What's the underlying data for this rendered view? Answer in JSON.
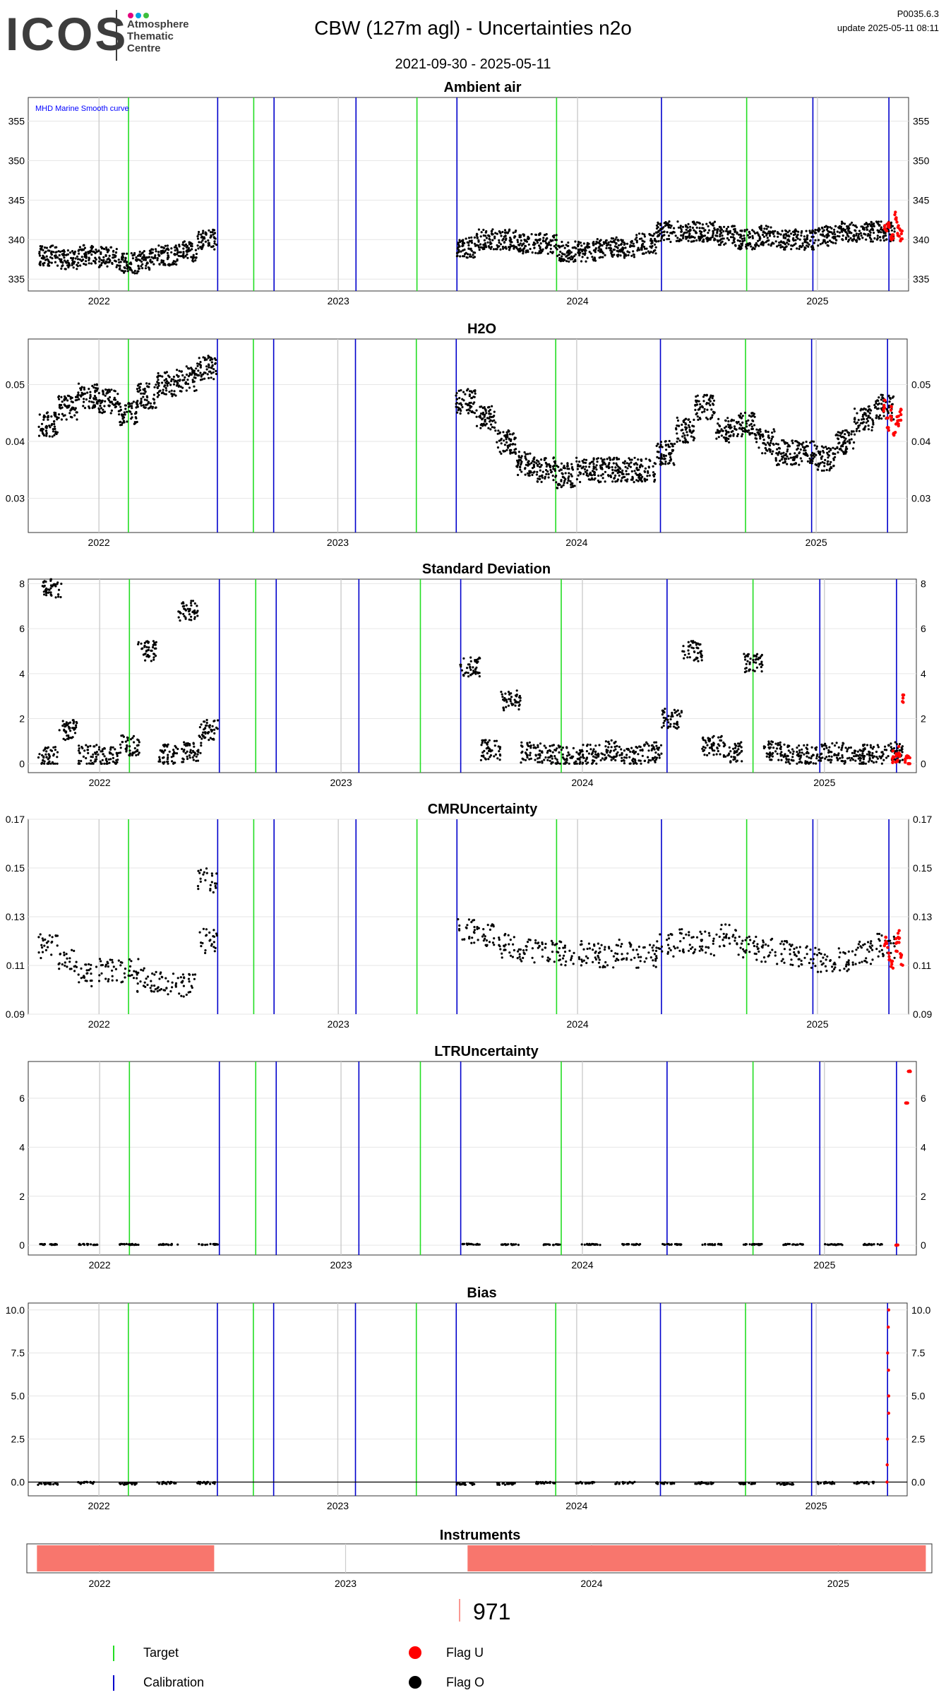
{
  "header": {
    "logo_text": "ICOS",
    "logo_lines": [
      "Atmosphere",
      "Thematic",
      "Centre"
    ],
    "title": "CBW  (127m agl) - Uncertainties n2o",
    "date_range": "2021-09-30 - 2025-05-11",
    "version": "P0035.6.3",
    "update": "update  2025-05-11 08:11"
  },
  "colors": {
    "target": "#22dd22",
    "calibration": "#0000cc",
    "flag_u": "#ff0000",
    "flag_o": "#000000",
    "instrument_bar": "#f8766d",
    "smooth_label": "#0000ff",
    "logo_dots": [
      "#e3007e",
      "#00a0e3",
      "#3dbf3d"
    ]
  },
  "chart_data": [
    {
      "type": "scatter",
      "title": "Ambient air",
      "annotation": "MHD Marine Smooth curve",
      "x_ticks": [
        "2022",
        "2023",
        "2024",
        "2025"
      ],
      "y_ticks": [
        335,
        340,
        345,
        350,
        355
      ],
      "ylim": [
        333.5,
        358
      ],
      "grid": true,
      "series": [
        {
          "name": "Flag O",
          "x": [
            "2021-10",
            "2021-11",
            "2021-12",
            "2022-01",
            "2022-02",
            "2022-03",
            "2022-04",
            "2022-05",
            "2022-06",
            "2023-07",
            "2023-08",
            "2023-09",
            "2023-10",
            "2023-11",
            "2023-12",
            "2024-01",
            "2024-02",
            "2024-03",
            "2024-04",
            "2024-05",
            "2024-06",
            "2024-07",
            "2024-08",
            "2024-09",
            "2024-10",
            "2024-11",
            "2024-12",
            "2025-01",
            "2025-02",
            "2025-03",
            "2025-04"
          ],
          "y": [
            338,
            337.5,
            338,
            337.8,
            337,
            337.5,
            338,
            338.5,
            340,
            339,
            340,
            340,
            339.5,
            339.5,
            338.5,
            338.5,
            339,
            339,
            339.5,
            341,
            341,
            341,
            340.5,
            340,
            340.5,
            340,
            340,
            340.5,
            341,
            341,
            341
          ]
        },
        {
          "name": "Flag U",
          "x": [
            "2025-04-15",
            "2025-04-20",
            "2025-04-25",
            "2025-05-01",
            "2025-05-05",
            "2025-05-09"
          ],
          "y": [
            341,
            342,
            340,
            343,
            341,
            340.5
          ]
        }
      ]
    },
    {
      "type": "scatter",
      "title": "H2O",
      "x_ticks": [
        "2022",
        "2023",
        "2024",
        "2025"
      ],
      "y_ticks": [
        0.03,
        0.04,
        0.05
      ],
      "ylim": [
        0.024,
        0.058
      ],
      "grid": true,
      "series": [
        {
          "name": "Flag O",
          "x": [
            "2021-10",
            "2021-11",
            "2021-12",
            "2022-01",
            "2022-02",
            "2022-03",
            "2022-04",
            "2022-05",
            "2022-06",
            "2023-07",
            "2023-08",
            "2023-09",
            "2023-10",
            "2023-11",
            "2023-12",
            "2024-01",
            "2024-02",
            "2024-03",
            "2024-04",
            "2024-05",
            "2024-06",
            "2024-07",
            "2024-08",
            "2024-09",
            "2024-10",
            "2024-11",
            "2024-12",
            "2025-01",
            "2025-02",
            "2025-03",
            "2025-04"
          ],
          "y": [
            0.043,
            0.046,
            0.048,
            0.047,
            0.045,
            0.048,
            0.05,
            0.051,
            0.053,
            0.047,
            0.044,
            0.04,
            0.036,
            0.035,
            0.034,
            0.035,
            0.035,
            0.035,
            0.035,
            0.038,
            0.042,
            0.046,
            0.042,
            0.043,
            0.04,
            0.038,
            0.038,
            0.037,
            0.04,
            0.044,
            0.046
          ]
        },
        {
          "name": "Flag U",
          "x": [
            "2025-04-15",
            "2025-04-20",
            "2025-04-25",
            "2025-05-01",
            "2025-05-05",
            "2025-05-09"
          ],
          "y": [
            0.046,
            0.043,
            0.045,
            0.042,
            0.044,
            0.045
          ]
        }
      ]
    },
    {
      "type": "scatter",
      "title": "Standard Deviation",
      "x_ticks": [
        "2022",
        "2023",
        "2024",
        "2025"
      ],
      "y_ticks": [
        0,
        2,
        4,
        6,
        8
      ],
      "ylim": [
        -0.4,
        8.2
      ],
      "grid": true,
      "series": [
        {
          "name": "Flag O",
          "x": [
            "2021-10",
            "2021-10-20",
            "2021-11",
            "2021-12",
            "2022-01",
            "2022-02",
            "2022-03",
            "2022-04",
            "2022-05",
            "2022-05-20",
            "2022-06",
            "2023-07",
            "2023-08",
            "2023-09",
            "2023-10",
            "2023-11",
            "2023-12",
            "2024-01",
            "2024-02",
            "2024-03",
            "2024-04",
            "2024-05",
            "2024-06",
            "2024-07",
            "2024-08",
            "2024-09",
            "2024-10",
            "2024-11",
            "2024-12",
            "2025-01",
            "2025-02",
            "2025-03",
            "2025-04"
          ],
          "y": [
            0.3,
            7.8,
            1.5,
            0.4,
            0.3,
            0.8,
            5.0,
            0.4,
            6.8,
            0.5,
            1.5,
            4.3,
            0.6,
            2.8,
            0.5,
            0.4,
            0.3,
            0.4,
            0.6,
            0.4,
            0.5,
            2.0,
            5.0,
            0.8,
            0.5,
            4.5,
            0.6,
            0.4,
            0.4,
            0.5,
            0.3,
            0.4,
            0.5
          ]
        },
        {
          "name": "Flag U",
          "x": [
            "2025-04-15",
            "2025-04-20",
            "2025-04-25",
            "2025-05-01",
            "2025-05-05",
            "2025-05-09"
          ],
          "y": [
            0.3,
            0.2,
            0.5,
            2.8,
            0.3,
            0.1
          ]
        }
      ]
    },
    {
      "type": "scatter",
      "title": "CMRUncertainty",
      "x_ticks": [
        "2022",
        "2023",
        "2024",
        "2025"
      ],
      "y_ticks": [
        0.09,
        0.11,
        0.13,
        0.15,
        0.17
      ],
      "ylim": [
        0.09,
        0.17
      ],
      "grid": true,
      "series": [
        {
          "name": "Flag O",
          "x": [
            "2021-10",
            "2021-11",
            "2021-12",
            "2022-01",
            "2022-02",
            "2022-03",
            "2022-04",
            "2022-05",
            "2022-06",
            "2022-06-15",
            "2023-07",
            "2023-08",
            "2023-09",
            "2023-10",
            "2023-11",
            "2023-12",
            "2024-01",
            "2024-02",
            "2024-03",
            "2024-04",
            "2024-05",
            "2024-06",
            "2024-07",
            "2024-08",
            "2024-09",
            "2024-10",
            "2024-11",
            "2024-12",
            "2025-01",
            "2025-02",
            "2025-03",
            "2025-04"
          ],
          "y": [
            0.118,
            0.112,
            0.106,
            0.108,
            0.108,
            0.104,
            0.103,
            0.102,
            0.12,
            0.145,
            0.124,
            0.122,
            0.118,
            0.116,
            0.116,
            0.115,
            0.115,
            0.114,
            0.116,
            0.114,
            0.118,
            0.12,
            0.119,
            0.122,
            0.118,
            0.116,
            0.115,
            0.113,
            0.112,
            0.112,
            0.115,
            0.118
          ]
        },
        {
          "name": "Flag U",
          "x": [
            "2025-04-15",
            "2025-04-20",
            "2025-04-25",
            "2025-05-01",
            "2025-05-05",
            "2025-05-09"
          ],
          "y": [
            0.12,
            0.115,
            0.11,
            0.118,
            0.122,
            0.113
          ]
        }
      ]
    },
    {
      "type": "scatter",
      "title": "LTRUncertainty",
      "x_ticks": [
        "2022",
        "2023",
        "2024",
        "2025"
      ],
      "y_ticks": [
        0,
        2,
        4,
        6
      ],
      "ylim": [
        -0.4,
        7.5
      ],
      "grid": true,
      "series": [
        {
          "name": "Flag O",
          "x": [
            "2021-10",
            "2021-12",
            "2022-02",
            "2022-04",
            "2022-06",
            "2023-07",
            "2023-09",
            "2023-11",
            "2024-01",
            "2024-03",
            "2024-05",
            "2024-07",
            "2024-09",
            "2024-11",
            "2025-01",
            "2025-03"
          ],
          "y": [
            0.03,
            0.03,
            0.03,
            0.03,
            0.03,
            0.04,
            0.03,
            0.03,
            0.03,
            0.03,
            0.03,
            0.03,
            0.03,
            0.03,
            0.03,
            0.03
          ]
        },
        {
          "name": "Flag U",
          "x": [
            "2025-04-20",
            "2025-05-05",
            "2025-05-09"
          ],
          "y": [
            0.0,
            5.8,
            7.1
          ]
        }
      ]
    },
    {
      "type": "scatter",
      "title": "Bias",
      "x_ticks": [
        "2022",
        "2023",
        "2024",
        "2025"
      ],
      "y_ticks": [
        0.0,
        2.5,
        5.0,
        7.5,
        10.0
      ],
      "y_tick_labels": [
        "0.0",
        "2.5",
        "5.0",
        "7.5",
        "10.0"
      ],
      "ylim": [
        -0.8,
        10.4
      ],
      "grid": true,
      "series": [
        {
          "name": "Flag O",
          "x": [
            "2021-10",
            "2021-12",
            "2022-02",
            "2022-04",
            "2022-06",
            "2023-07",
            "2023-09",
            "2023-11",
            "2024-01",
            "2024-03",
            "2024-05",
            "2024-07",
            "2024-09",
            "2024-11",
            "2025-01",
            "2025-03"
          ],
          "y": [
            -0.1,
            -0.05,
            -0.1,
            -0.05,
            -0.05,
            -0.1,
            -0.1,
            -0.05,
            -0.05,
            -0.05,
            -0.05,
            -0.05,
            -0.1,
            -0.1,
            -0.05,
            -0.05
          ]
        },
        {
          "name": "Flag U",
          "x": [
            "2025-04-20",
            "2025-04-20",
            "2025-04-20",
            "2025-04-20",
            "2025-04-20",
            "2025-04-20",
            "2025-04-20",
            "2025-04-20",
            "2025-04-20"
          ],
          "y": [
            0.0,
            1.0,
            2.5,
            4.0,
            5.0,
            6.5,
            7.5,
            9.0,
            10.0
          ]
        }
      ]
    },
    {
      "type": "bar",
      "title": "Instruments",
      "x_ticks": [
        "2022",
        "2023",
        "2024",
        "2025"
      ],
      "periods": [
        [
          "2021-09-30",
          "2022-06-20"
        ],
        [
          "2023-07-01",
          "2025-05-11"
        ]
      ],
      "instrument_id": "971"
    }
  ],
  "target_lines": [
    "2022-02-15",
    "2022-08-25",
    "2023-05-01",
    "2023-11-30",
    "2024-09-15"
  ],
  "calibration_lines": [
    "2022-07-01",
    "2022-09-25",
    "2023-01-28",
    "2023-07-01",
    "2024-05-08",
    "2024-12-25",
    "2025-04-20"
  ],
  "legend": [
    {
      "label": "Target",
      "kind": "line",
      "color_key": "target"
    },
    {
      "label": "Calibration",
      "kind": "line",
      "color_key": "calibration"
    },
    {
      "label": "Flag U",
      "kind": "dot",
      "color_key": "flag_u"
    },
    {
      "label": "Flag O",
      "kind": "dot",
      "color_key": "flag_o"
    }
  ]
}
